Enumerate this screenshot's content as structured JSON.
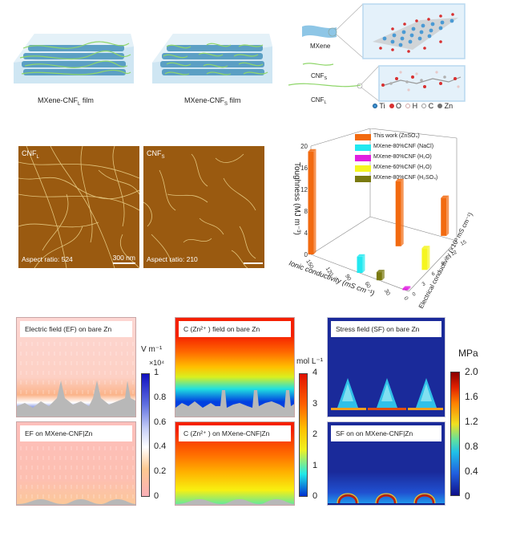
{
  "top": {
    "film_captions": [
      {
        "main": "MXene-CNF",
        "sub": "L",
        "tail": " film"
      },
      {
        "main": "MXene-CNF",
        "sub": "S",
        "tail": " film"
      }
    ],
    "schematic": {
      "mxene_label": "MXene",
      "cnfs_label": {
        "main": "CNF",
        "sub": "S"
      },
      "cnfl_label": {
        "main": "CNF",
        "sub": "L"
      },
      "atom_legend": [
        {
          "symbol": "Ti",
          "color": "#3b8fd0"
        },
        {
          "symbol": "O",
          "color": "#d83030"
        },
        {
          "symbol": "H",
          "color": "#e8c8c8"
        },
        {
          "symbol": "C",
          "color": "#b0b0b0"
        },
        {
          "symbol": "Zn",
          "color": "#707070"
        }
      ]
    }
  },
  "afm": [
    {
      "label": {
        "main": "CNF",
        "sub": "L"
      },
      "aspect": "Aspect ratio: 524",
      "scale_bar": "300 nm"
    },
    {
      "label": {
        "main": "CNF",
        "sub": "S"
      },
      "aspect": "Aspect ratio: 210",
      "scale_bar": ""
    }
  ],
  "chart_data": {
    "type": "bar",
    "subtype": "3d-bar",
    "zlabel": "Toughness (MJ m⁻³)",
    "xlabel": "Ionic conductivity (mS cm⁻¹)",
    "ylabel": "Electrical conductivity (×10³ mS cm⁻¹)",
    "z_ticks": [
      "0",
      "4",
      "8",
      "12",
      "16",
      "20"
    ],
    "x_ticks": [
      "150",
      "120",
      "90",
      "60",
      "30",
      "0"
    ],
    "y_ticks": [
      "0",
      "3",
      "6",
      "9",
      "12",
      "15"
    ],
    "zlim": [
      0,
      20
    ],
    "legend_position": "top",
    "legend": [
      {
        "name": "This work (ZnSO₄)",
        "color": "#f26a10"
      },
      {
        "name": "MXene-80%CNF (NaCl)",
        "color": "#22e8f0"
      },
      {
        "name": "MXene-80%CNF (H₂O)",
        "color": "#e020e0"
      },
      {
        "name": "MXene-60%CNF (H₂O)",
        "color": "#f5f520"
      },
      {
        "name": "MXene-80%CNF (H₂SO₄)",
        "color": "#7a7a10"
      }
    ],
    "bars": [
      {
        "series": "This work (ZnSO₄)",
        "ionic": 150,
        "electrical": 0,
        "toughness": 19
      },
      {
        "series": "This work (ZnSO₄)",
        "ionic": 60,
        "electrical": 9,
        "toughness": 12
      },
      {
        "series": "This work (ZnSO₄)",
        "ionic": 20,
        "electrical": 15,
        "toughness": 7
      },
      {
        "series": "MXene-80%CNF (NaCl)",
        "ionic": 75,
        "electrical": 0,
        "toughness": 3
      },
      {
        "series": "MXene-80%CNF (H₂O)",
        "ionic": 5,
        "electrical": 0,
        "toughness": 0.3
      },
      {
        "series": "MXene-60%CNF (H₂O)",
        "ionic": 5,
        "electrical": 6,
        "toughness": 4
      },
      {
        "series": "MXene-80%CNF (H₂SO₄)",
        "ionic": 45,
        "electrical": 0,
        "toughness": 1.5
      }
    ]
  },
  "simulations": {
    "ef": {
      "top_title": "Electric field (EF) on bare Zn",
      "bottom_title": "EF on MXene-CNF|Zn",
      "unit": "V m⁻¹",
      "multiplier": "×10⁴",
      "ticks": [
        "1",
        "0.8",
        "0.6",
        "0.4",
        "0.2",
        "0"
      ]
    },
    "conc": {
      "top_title": "C (Zn²⁺ ) field on bare Zn",
      "bottom_title": "C (Zn²⁺ ) on MXene-CNF|Zn",
      "unit": "mol L⁻¹",
      "ticks": [
        "4",
        "3",
        "2",
        "1",
        "0"
      ]
    },
    "stress": {
      "top_title": "Stress field (SF) on bare Zn",
      "bottom_title": "SF on on MXene-CNF|Zn",
      "unit": "MPa",
      "ticks": [
        "2.0",
        "1.6",
        "1.2",
        "0.8",
        "0.4",
        "0"
      ]
    }
  }
}
